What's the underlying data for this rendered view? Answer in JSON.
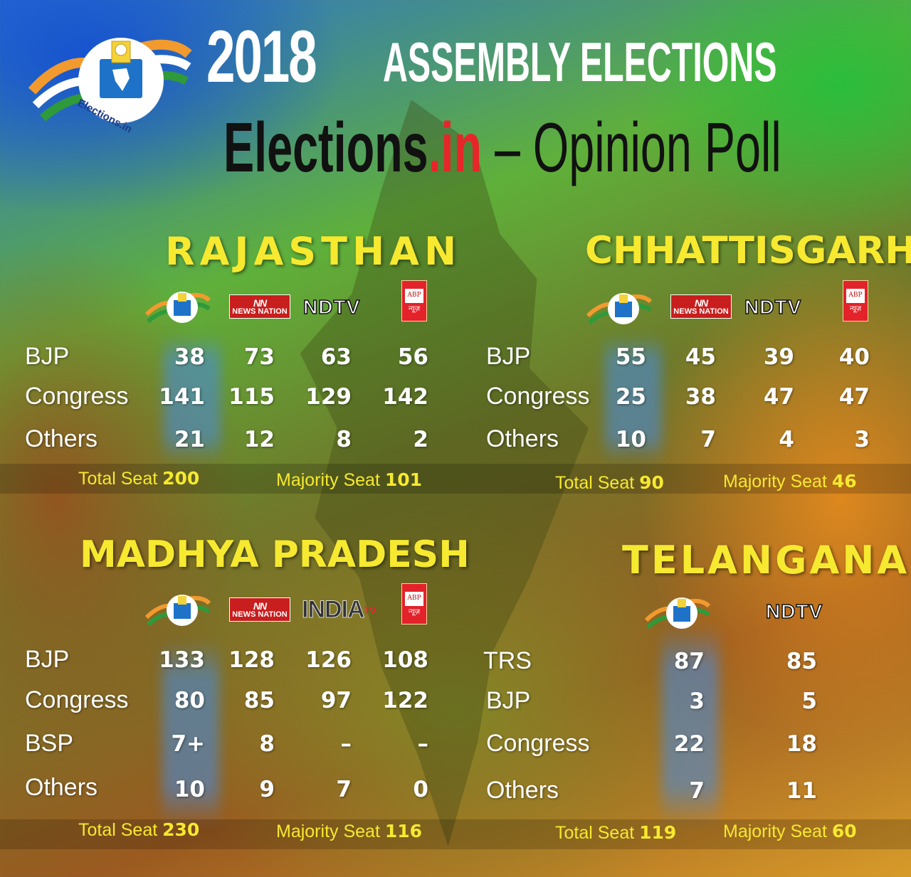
{
  "header": {
    "year": "2018",
    "title": "ASSEMBLY ELECTIONS",
    "brand_main": "Elections",
    "brand_tld": ".in",
    "subtitle": "– Opinion Poll"
  },
  "logo": {
    "text": "Elections.in",
    "icon": "ballot-box-india-logo"
  },
  "source_logos": {
    "elections_in": "Elections.in",
    "news_nation_mark": "NN",
    "news_nation": "NEWS NATION",
    "ndtv": "NDTV",
    "abp_top": "ABP",
    "abp_bottom": "न्यूज़",
    "india_tv": "INDIA",
    "india_tv_sup": "TV"
  },
  "states": {
    "rajasthan": {
      "name": "RAJASTHAN",
      "rows": [
        {
          "party": "BJP",
          "values": [
            "38",
            "73",
            "63",
            "56"
          ]
        },
        {
          "party": "Congress",
          "values": [
            "141",
            "115",
            "129",
            "142"
          ]
        },
        {
          "party": "Others",
          "values": [
            "21",
            "12",
            "8",
            "2"
          ]
        }
      ],
      "total_label": "Total Seat",
      "total": "200",
      "majority_label": "Majority Seat",
      "majority": "101"
    },
    "chhattisgarh": {
      "name": "CHHATTISGARH",
      "rows": [
        {
          "party": "BJP",
          "values": [
            "55",
            "45",
            "39",
            "40"
          ]
        },
        {
          "party": "Congress",
          "values": [
            "25",
            "38",
            "47",
            "47"
          ]
        },
        {
          "party": "Others",
          "values": [
            "10",
            "7",
            "4",
            "3"
          ]
        }
      ],
      "total_label": "Total Seat",
      "total": "90",
      "majority_label": "Majority Seat",
      "majority": "46"
    },
    "madhya_pradesh": {
      "name": "MADHYA PRADESH",
      "rows": [
        {
          "party": "BJP",
          "values": [
            "133",
            "128",
            "126",
            "108"
          ]
        },
        {
          "party": "Congress",
          "values": [
            "80",
            "85",
            "97",
            "122"
          ]
        },
        {
          "party": "BSP",
          "values": [
            "7+",
            "8",
            "–",
            "–"
          ]
        },
        {
          "party": "Others",
          "values": [
            "10",
            "9",
            "7",
            "0"
          ]
        }
      ],
      "total_label": "Total Seat",
      "total": "230",
      "majority_label": "Majority Seat",
      "majority": "116"
    },
    "telangana": {
      "name": "TELANGANA",
      "rows": [
        {
          "party": "TRS",
          "values": [
            "87",
            "85"
          ]
        },
        {
          "party": "BJP",
          "values": [
            "3",
            "5"
          ]
        },
        {
          "party": "Congress",
          "values": [
            "22",
            "18"
          ]
        },
        {
          "party": "Others",
          "values": [
            "7",
            "11"
          ]
        }
      ],
      "total_label": "Total Seat",
      "total": "119",
      "majority_label": "Majority Seat",
      "majority": "60"
    }
  },
  "colors": {
    "accent_yellow": "#f6e930",
    "brand_red": "#e8262a"
  }
}
